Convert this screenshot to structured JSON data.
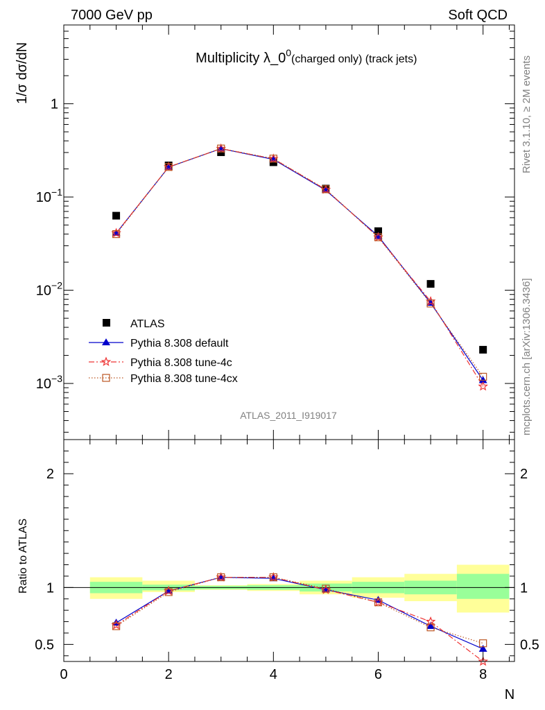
{
  "header": {
    "left": "7000 GeV pp",
    "right": "Soft QCD"
  },
  "side_labels": {
    "rivet": "Rivet 3.1.10, ≥ 2M events",
    "mcplots": "mcplots.cern.ch [arXiv:1306.3436]"
  },
  "chart_data": [
    {
      "type": "scatter",
      "title": "Multiplicity λ_0",
      "title_sup": "0",
      "title_suffix": " (charged only) (track jets)",
      "ylabel": "1/σ dσ/dN",
      "xlabel": "N",
      "watermark": "ATLAS_2011_I919017",
      "yscale": "log",
      "xlim": [
        0,
        8.6
      ],
      "ylim": [
        0.00025,
        7
      ],
      "y_ticks": [
        {
          "value": 0.001,
          "base": "10",
          "exp": "−3"
        },
        {
          "value": 0.01,
          "base": "10",
          "exp": "−2"
        },
        {
          "value": 0.1,
          "base": "10",
          "exp": "−1"
        },
        {
          "value": 1,
          "base": "1",
          "exp": ""
        }
      ],
      "legend_position": "lower-left",
      "series": [
        {
          "name": "ATLAS",
          "color": "#000000",
          "marker": "square",
          "x": [
            1,
            2,
            3,
            4,
            5,
            6,
            7,
            8
          ],
          "y": [
            0.063,
            0.218,
            0.302,
            0.236,
            0.123,
            0.043,
            0.0117,
            0.0023
          ]
        },
        {
          "name": "Pythia 8.308 default",
          "color": "#0000cc",
          "marker": "triangle",
          "line": "solid",
          "x": [
            1,
            2,
            3,
            4,
            5,
            6,
            7,
            8
          ],
          "y": [
            0.041,
            0.209,
            0.33,
            0.253,
            0.118,
            0.038,
            0.0073,
            0.00108
          ]
        },
        {
          "name": "Pythia 8.308 tune-4c",
          "color": "#ee3333",
          "marker": "star",
          "line": "dashdot",
          "x": [
            1,
            2,
            3,
            4,
            5,
            6,
            7,
            8
          ],
          "y": [
            0.041,
            0.21,
            0.33,
            0.257,
            0.12,
            0.037,
            0.0076,
            0.00093
          ]
        },
        {
          "name": "Pythia 8.308 tune-4cx",
          "color": "#bb5522",
          "marker": "open-square",
          "line": "dotted",
          "x": [
            1,
            2,
            3,
            4,
            5,
            6,
            7,
            8
          ],
          "y": [
            0.04,
            0.21,
            0.331,
            0.258,
            0.121,
            0.037,
            0.0072,
            0.00118
          ]
        }
      ]
    },
    {
      "type": "scatter",
      "ylabel": "Ratio to ATLAS",
      "xlabel": "N",
      "xlim": [
        0,
        8.6
      ],
      "ylim": [
        0.35,
        2.3
      ],
      "x_ticks": [
        0,
        2,
        4,
        6,
        8
      ],
      "y_ticks": [
        0.5,
        1,
        2
      ],
      "reference_line": 1,
      "bands": [
        {
          "xmin": 0.5,
          "xmax": 1.5,
          "inner": [
            0.95,
            1.05
          ],
          "outer": [
            0.9,
            1.09
          ]
        },
        {
          "xmin": 1.5,
          "xmax": 2.5,
          "inner": [
            0.975,
            1.025
          ],
          "outer": [
            0.96,
            1.06
          ]
        },
        {
          "xmin": 2.5,
          "xmax": 3.5,
          "inner": [
            0.985,
            1.015
          ],
          "outer": [
            0.98,
            1.02
          ]
        },
        {
          "xmin": 3.5,
          "xmax": 4.5,
          "inner": [
            0.98,
            1.02
          ],
          "outer": [
            0.97,
            1.03
          ]
        },
        {
          "xmin": 4.5,
          "xmax": 5.5,
          "inner": [
            0.965,
            1.035
          ],
          "outer": [
            0.94,
            1.06
          ]
        },
        {
          "xmin": 5.5,
          "xmax": 6.5,
          "inner": [
            0.95,
            1.05
          ],
          "outer": [
            0.91,
            1.09
          ]
        },
        {
          "xmin": 6.5,
          "xmax": 7.5,
          "inner": [
            0.94,
            1.06
          ],
          "outer": [
            0.88,
            1.12
          ]
        },
        {
          "xmin": 7.5,
          "xmax": 8.5,
          "inner": [
            0.9,
            1.12
          ],
          "outer": [
            0.78,
            1.2
          ]
        }
      ],
      "band_colors": {
        "inner": "#99ff99",
        "outer": "#ffff99"
      },
      "series": [
        {
          "name": "Pythia 8.308 default",
          "color": "#0000cc",
          "marker": "triangle",
          "line": "solid",
          "x": [
            1,
            2,
            3,
            4,
            5,
            6,
            7,
            8
          ],
          "y": [
            0.69,
            0.97,
            1.09,
            1.08,
            0.98,
            0.89,
            0.66,
            0.46
          ]
        },
        {
          "name": "Pythia 8.308 tune-4c",
          "color": "#ee3333",
          "marker": "star",
          "line": "dashdot",
          "x": [
            1,
            2,
            3,
            4,
            5,
            6,
            7,
            8
          ],
          "y": [
            0.67,
            0.97,
            1.09,
            1.09,
            0.98,
            0.87,
            0.7,
            0.35
          ]
        },
        {
          "name": "Pythia 8.308 tune-4cx",
          "color": "#bb5522",
          "marker": "open-square",
          "line": "dotted",
          "x": [
            1,
            2,
            3,
            4,
            5,
            6,
            7,
            8
          ],
          "y": [
            0.66,
            0.96,
            1.09,
            1.09,
            0.99,
            0.87,
            0.65,
            0.51
          ]
        }
      ]
    }
  ]
}
